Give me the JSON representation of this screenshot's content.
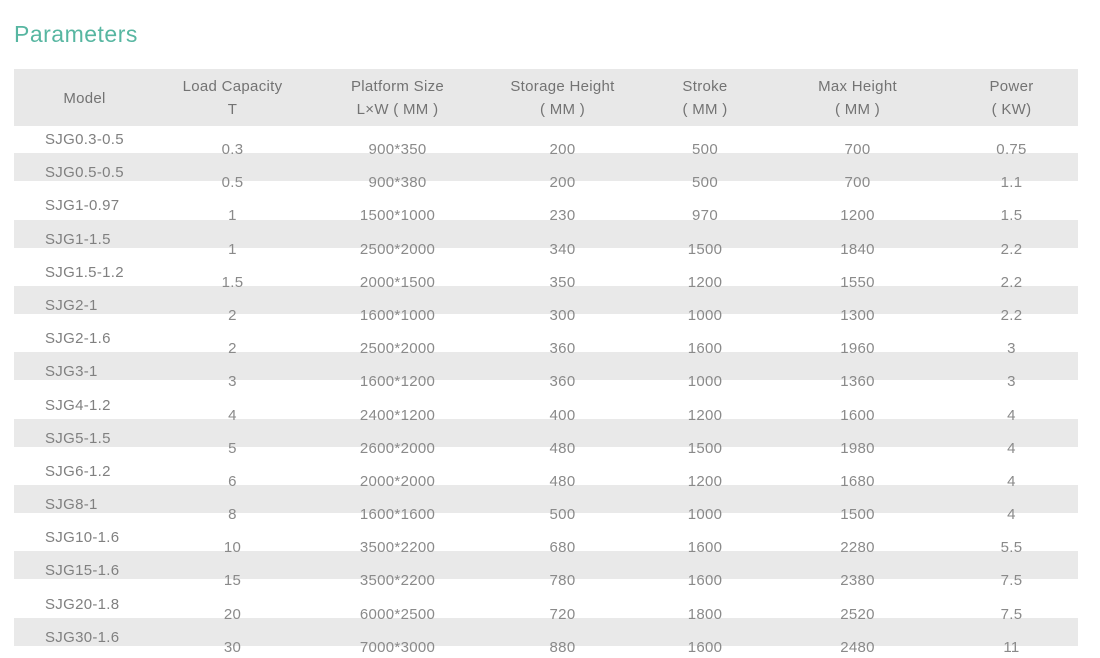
{
  "page": {
    "title": "Parameters",
    "accent_color": "#57b6a1",
    "header_bg": "#e8e8e8",
    "stripe_bg": "#e9e9e9"
  },
  "table": {
    "columns": [
      {
        "label": "Model",
        "unit": ""
      },
      {
        "label": "Load Capacity",
        "unit": "T"
      },
      {
        "label": "Platform Size",
        "unit": "L×W ( MM )"
      },
      {
        "label": "Storage Height",
        "unit": "( MM )"
      },
      {
        "label": "Stroke",
        "unit": "( MM )"
      },
      {
        "label": "Max Height",
        "unit": "( MM )"
      },
      {
        "label": "Power",
        "unit": "( KW)"
      }
    ],
    "rows": [
      [
        "SJG0.3-0.5",
        "0.3",
        "900*350",
        "200",
        "500",
        "700",
        "0.75"
      ],
      [
        "SJG0.5-0.5",
        "0.5",
        "900*380",
        "200",
        "500",
        "700",
        "1.1"
      ],
      [
        "SJG1-0.97",
        "1",
        "1500*1000",
        "230",
        "970",
        "1200",
        "1.5"
      ],
      [
        "SJG1-1.5",
        "1",
        "2500*2000",
        "340",
        "1500",
        "1840",
        "2.2"
      ],
      [
        "SJG1.5-1.2",
        "1.5",
        "2000*1500",
        "350",
        "1200",
        "1550",
        "2.2"
      ],
      [
        "SJG2-1",
        "2",
        "1600*1000",
        "300",
        "1000",
        "1300",
        "2.2"
      ],
      [
        "SJG2-1.6",
        "2",
        "2500*2000",
        "360",
        "1600",
        "1960",
        "3"
      ],
      [
        "SJG3-1",
        "3",
        "1600*1200",
        "360",
        "1000",
        "1360",
        "3"
      ],
      [
        "SJG4-1.2",
        "4",
        "2400*1200",
        "400",
        "1200",
        "1600",
        "4"
      ],
      [
        "SJG5-1.5",
        "5",
        "2600*2000",
        "480",
        "1500",
        "1980",
        "4"
      ],
      [
        "SJG6-1.2",
        "6",
        "2000*2000",
        "480",
        "1200",
        "1680",
        "4"
      ],
      [
        "SJG8-1",
        "8",
        "1600*1600",
        "500",
        "1000",
        "1500",
        "4"
      ],
      [
        "SJG10-1.6",
        "10",
        "3500*2200",
        "680",
        "1600",
        "2280",
        "5.5"
      ],
      [
        "SJG15-1.6",
        "15",
        "3500*2200",
        "780",
        "1600",
        "2380",
        "7.5"
      ],
      [
        "SJG20-1.8",
        "20",
        "6000*2500",
        "720",
        "1800",
        "2520",
        "7.5"
      ],
      [
        "SJG30-1.6",
        "30",
        "7000*3000",
        "880",
        "1600",
        "2480",
        "11"
      ]
    ]
  }
}
